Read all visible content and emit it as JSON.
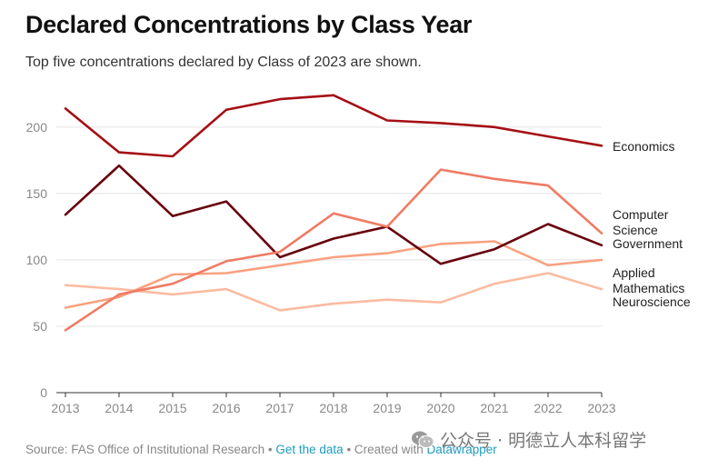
{
  "title": "Declared Concentrations by Class Year",
  "subtitle": "Top five concentrations declared by Class of 2023 are shown.",
  "footer": {
    "source": "Source: FAS Office of Institutional Research",
    "sep1": " • ",
    "get_data": "Get the data",
    "sep2": " • ",
    "created_with": "Created with ",
    "datawrapper": "Datawrapper"
  },
  "watermark": {
    "text": "公众号 · 明德立人本科留学",
    "icon": "wechat-icon"
  },
  "chart_data": {
    "type": "line",
    "x": [
      2013,
      2014,
      2015,
      2016,
      2017,
      2018,
      2019,
      2020,
      2021,
      2022,
      2023
    ],
    "ylim": [
      0,
      230
    ],
    "yticks": [
      0,
      50,
      100,
      150,
      200
    ],
    "xlabel": "",
    "ylabel": "",
    "grid": true,
    "legend": "inline labels at line ends (right)",
    "series": [
      {
        "name": "Economics",
        "label_lines": [
          "Economics"
        ],
        "color": "#a50f15",
        "values": [
          214,
          181,
          178,
          213,
          221,
          224,
          205,
          203,
          200,
          193,
          186
        ]
      },
      {
        "name": "Computer Science",
        "label_lines": [
          "Computer",
          "Science"
        ],
        "color": "#f07b63",
        "values": [
          47,
          74,
          82,
          99,
          106,
          135,
          125,
          168,
          161,
          156,
          120
        ]
      },
      {
        "name": "Government",
        "label_lines": [
          "Government"
        ],
        "color": "#67000d",
        "values": [
          134,
          171,
          133,
          144,
          102,
          116,
          125,
          97,
          108,
          127,
          111
        ]
      },
      {
        "name": "Applied Mathematics",
        "label_lines": [
          "Applied",
          "Mathematics"
        ],
        "color": "#f9a180",
        "values": [
          64,
          72,
          89,
          90,
          96,
          102,
          105,
          112,
          114,
          96,
          100
        ]
      },
      {
        "name": "Neuroscience",
        "label_lines": [
          "Neuroscience"
        ],
        "color": "#fcbba1",
        "values": [
          81,
          78,
          74,
          78,
          62,
          67,
          70,
          68,
          82,
          90,
          78
        ]
      }
    ]
  }
}
